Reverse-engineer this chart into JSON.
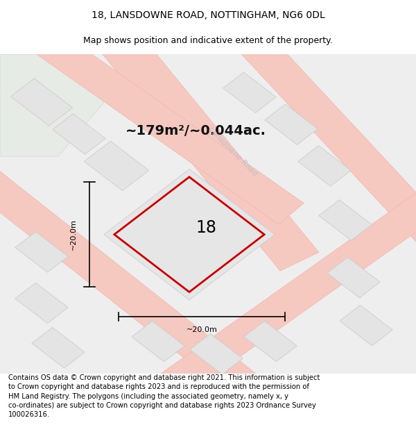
{
  "title_line1": "18, LANSDOWNE ROAD, NOTTINGHAM, NG6 0DL",
  "title_line2": "Map shows position and indicative extent of the property.",
  "area_text": "~179m²/~0.044ac.",
  "number_label": "18",
  "dim_vertical": "~20.0m",
  "dim_horizontal": "~20.0m",
  "road_label": "Lansdowne Road",
  "footer_text": "Contains OS data © Crown copyright and database right 2021. This information is subject\nto Crown copyright and database rights 2023 and is reproduced with the permission of\nHM Land Registry. The polygons (including the associated geometry, namely x, y\nco-ordinates) are subject to Crown copyright and database rights 2023 Ordnance Survey\n100026316.",
  "bg_color": "#f2f2f2",
  "map_bg": "#eeeeee",
  "property_edge": "#cc0000",
  "green_fill": "#e6ebe6",
  "road_color": "#f5c8c0",
  "road_edge": "#f0b8b0",
  "title_fontsize": 10,
  "subtitle_fontsize": 9,
  "area_fontsize": 14,
  "label_fontsize": 17,
  "dim_fontsize": 8,
  "footer_fontsize": 7.2,
  "road_label_fontsize": 8,
  "road_label_color": "#c0c0c0"
}
